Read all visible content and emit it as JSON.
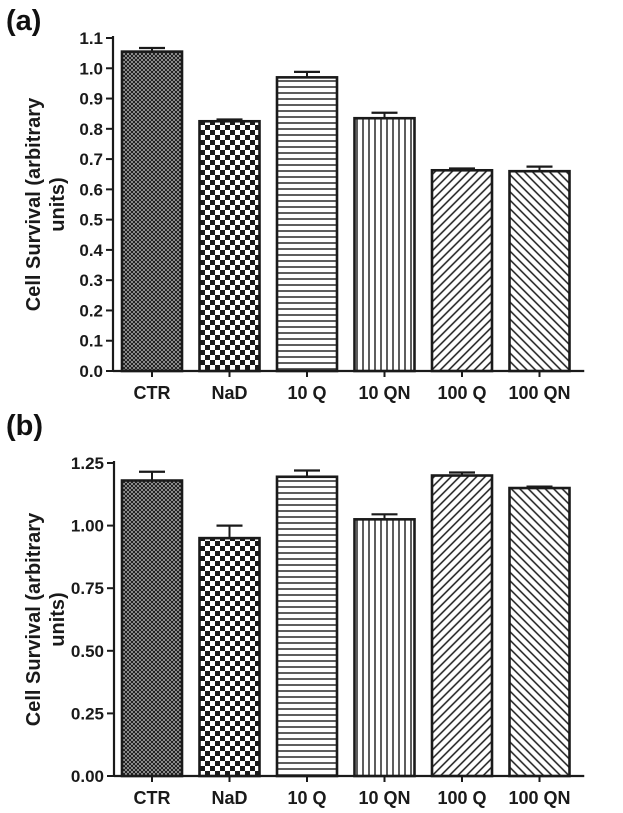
{
  "chart_data": [
    {
      "type": "bar",
      "panel_label": "(a)",
      "categories": [
        "CTR",
        "NaD",
        "10 Q",
        "10 QN",
        "100 Q",
        "100 QN"
      ],
      "values": [
        1.055,
        0.825,
        0.97,
        0.835,
        0.663,
        0.66
      ],
      "errors": [
        0.012,
        0.006,
        0.018,
        0.018,
        0.006,
        0.015
      ],
      "patterns": [
        "crosshatch",
        "checker",
        "horizontal",
        "vertical",
        "diagonal-up",
        "diagonal-down"
      ],
      "ylabel": "Cell Survival (arbitrary units)",
      "ylabel_lines": [
        "Cell Survival (arbitrary",
        "units)"
      ],
      "ylim": [
        0.0,
        1.1
      ],
      "ticks": [
        0.0,
        0.1,
        0.2,
        0.3,
        0.4,
        0.5,
        0.6,
        0.7,
        0.8,
        0.9,
        1.0,
        1.1
      ],
      "tick_labels": [
        "0.0",
        "0.1",
        "0.2",
        "0.3",
        "0.4",
        "0.5",
        "0.6",
        "0.7",
        "0.8",
        "0.9",
        "1.0",
        "1.1"
      ],
      "grid": false
    },
    {
      "type": "bar",
      "panel_label": "(b)",
      "categories": [
        "CTR",
        "NaD",
        "10 Q",
        "10 QN",
        "100 Q",
        "100 QN"
      ],
      "values": [
        1.18,
        0.95,
        1.195,
        1.025,
        1.2,
        1.15
      ],
      "errors": [
        0.035,
        0.05,
        0.025,
        0.02,
        0.012,
        0.006
      ],
      "patterns": [
        "crosshatch",
        "checker",
        "horizontal",
        "vertical",
        "diagonal-up",
        "diagonal-down"
      ],
      "ylabel": "Cell Survival (arbitrary units)",
      "ylabel_lines": [
        "Cell Survival (arbitrary",
        "units)"
      ],
      "ylim": [
        0.0,
        1.25
      ],
      "ticks": [
        0.0,
        0.25,
        0.5,
        0.75,
        1.0,
        1.25
      ],
      "tick_labels": [
        "0.00",
        "0.25",
        "0.50",
        "0.75",
        "1.00",
        "1.25"
      ],
      "grid": false
    }
  ]
}
